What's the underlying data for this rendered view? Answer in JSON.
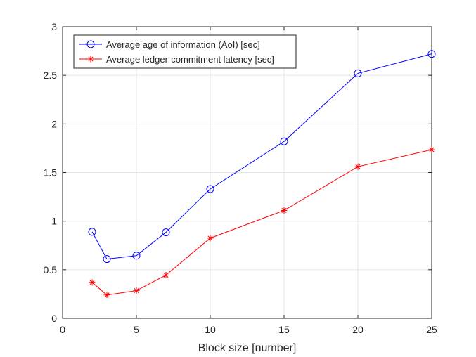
{
  "chart_data": {
    "type": "line",
    "xlabel": "Block size [number]",
    "ylabel": "",
    "title": "",
    "xlim": [
      0,
      25
    ],
    "ylim": [
      0,
      3
    ],
    "xticks": [
      0,
      5,
      10,
      15,
      20,
      25
    ],
    "yticks": [
      0,
      0.5,
      1,
      1.5,
      2,
      2.5,
      3
    ],
    "xtick_labels": [
      "0",
      "5",
      "10",
      "15",
      "20",
      "25"
    ],
    "ytick_labels": [
      "0",
      "0.5",
      "1",
      "1.5",
      "2",
      "2.5",
      "3"
    ],
    "grid": true,
    "legend_position": "top-left",
    "series": [
      {
        "name": "Average age of information (AoI) [sec]",
        "color": "#0000ff",
        "marker": "circle",
        "x": [
          2,
          3,
          5,
          7,
          10,
          15,
          20,
          25
        ],
        "y": [
          0.89,
          0.61,
          0.645,
          0.885,
          1.33,
          1.82,
          2.52,
          2.72
        ]
      },
      {
        "name": "Average ledger-commitment latency [sec]",
        "color": "#ff0000",
        "marker": "asterisk",
        "x": [
          2,
          3,
          5,
          7,
          10,
          15,
          20,
          25
        ],
        "y": [
          0.37,
          0.24,
          0.285,
          0.445,
          0.825,
          1.11,
          1.56,
          1.735
        ]
      }
    ]
  }
}
